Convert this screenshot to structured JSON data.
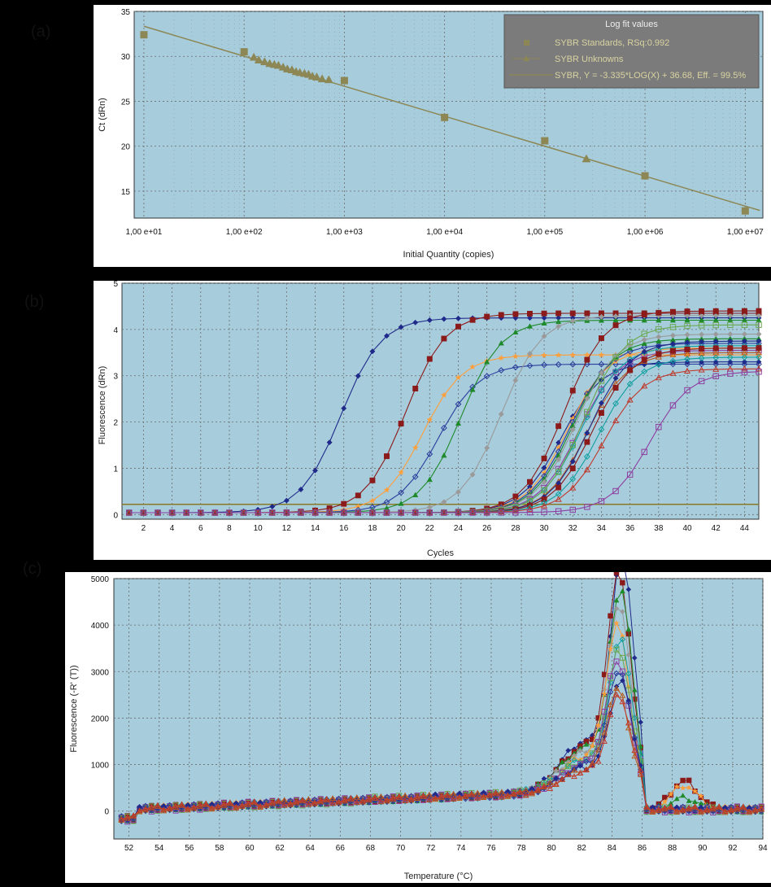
{
  "colors": {
    "plot_bg": "#A7CCDC",
    "grid": "#6b6b6b",
    "std": "#8C8754",
    "legend_bg": "#7b7b7b"
  },
  "panels": [
    {
      "label": "(a)"
    },
    {
      "label": "(b)"
    },
    {
      "label": "(c)"
    }
  ],
  "chart_data": [
    {
      "type": "scatter",
      "title": "",
      "xlabel": "Initial Quantity (copies)",
      "ylabel": "Ct (dRn)",
      "x_scale": "log",
      "xlim": [
        8,
        15000000
      ],
      "ylim": [
        12,
        35
      ],
      "x_ticks": [
        10,
        100,
        1000,
        10000,
        100000,
        1000000,
        10000000
      ],
      "x_tick_labels": [
        "1,00 e+01",
        "1,00 e+02",
        "1,00 e+03",
        "1,00 e+04",
        "1,00 e+05",
        "1,00 e+06",
        "1,00 e+07"
      ],
      "y_ticks": [
        15,
        20,
        25,
        30,
        35
      ],
      "grid": true,
      "legend": {
        "title": "Log fit values",
        "position": "top-right",
        "entries": [
          "SYBR Standards, RSq:0.992",
          "SYBR Unknowns",
          "SYBR, Y = -3.335*LOG(X) + 36.68, Eff. = 99.5%"
        ]
      },
      "fit": {
        "slope": -3.335,
        "intercept": 36.68,
        "x_range": [
          10,
          14000000
        ]
      },
      "series": [
        {
          "name": "SYBR Standards",
          "points": [
            [
              10,
              32.4
            ],
            [
              100,
              30.5
            ],
            [
              1000,
              27.3
            ],
            [
              10000,
              23.2
            ],
            [
              100000,
              20.6
            ],
            [
              1000000,
              16.7
            ],
            [
              10000000,
              12.8
            ]
          ]
        },
        {
          "name": "SYBR Unknowns",
          "points": [
            [
              125,
              29.9
            ],
            [
              140,
              29.6
            ],
            [
              160,
              29.4
            ],
            [
              180,
              29.2
            ],
            [
              200,
              29.1
            ],
            [
              220,
              29.0
            ],
            [
              245,
              28.8
            ],
            [
              270,
              28.6
            ],
            [
              300,
              28.5
            ],
            [
              330,
              28.3
            ],
            [
              360,
              28.2
            ],
            [
              400,
              28.1
            ],
            [
              440,
              28.0
            ],
            [
              480,
              27.8
            ],
            [
              530,
              27.7
            ],
            [
              600,
              27.5
            ],
            [
              700,
              27.4
            ],
            [
              260000,
              18.6
            ]
          ]
        }
      ]
    },
    {
      "type": "line",
      "title": "",
      "xlabel": "Cycles",
      "ylabel": "Fluorescence (dRn)",
      "xlim": [
        0.5,
        45
      ],
      "ylim": [
        -0.1,
        5
      ],
      "x_ticks": [
        2,
        4,
        6,
        8,
        10,
        12,
        14,
        16,
        18,
        20,
        22,
        24,
        26,
        28,
        30,
        32,
        34,
        36,
        38,
        40,
        42,
        44
      ],
      "y_ticks": [
        0,
        1,
        2,
        3,
        4,
        5
      ],
      "threshold": 0.22,
      "grid": true,
      "series": [
        {
          "color": "#1f2a8a",
          "marker": "diamond",
          "fill": true,
          "midpoint": 15.8,
          "plateau": 4.25
        },
        {
          "color": "#8b1a1a",
          "marker": "square",
          "fill": true,
          "midpoint": 20.3,
          "plateau": 4.35
        },
        {
          "color": "#ff9f3a",
          "marker": "star",
          "fill": true,
          "midpoint": 21.5,
          "plateau": 3.45
        },
        {
          "color": "#2a3d9c",
          "marker": "diamond",
          "fill": false,
          "midpoint": 22.6,
          "plateau": 3.25
        },
        {
          "color": "#1e8a2a",
          "marker": "triangle",
          "fill": true,
          "midpoint": 24.2,
          "plateau": 4.2
        },
        {
          "color": "#9a9a9a",
          "marker": "diamond",
          "fill": true,
          "midpoint": 27.0,
          "plateau": 4.3
        },
        {
          "color": "#1f2a8a",
          "marker": "diamond",
          "fill": true,
          "midpoint": 31.2,
          "plateau": 3.3
        },
        {
          "color": "#8b1a1a",
          "marker": "square",
          "fill": true,
          "midpoint": 31.4,
          "plateau": 4.4
        },
        {
          "color": "#ff9f3a",
          "marker": "star",
          "fill": true,
          "midpoint": 31.6,
          "plateau": 3.6
        },
        {
          "color": "#2a3d9c",
          "marker": "diamond",
          "fill": false,
          "midpoint": 31.8,
          "plateau": 3.7
        },
        {
          "color": "#1e8a2a",
          "marker": "triangle",
          "fill": true,
          "midpoint": 32.0,
          "plateau": 3.8
        },
        {
          "color": "#9a9a9a",
          "marker": "diamond",
          "fill": true,
          "midpoint": 32.2,
          "plateau": 3.9
        },
        {
          "color": "#8e3fa0",
          "marker": "square",
          "fill": false,
          "midpoint": 32.4,
          "plateau": 3.55
        },
        {
          "color": "#11a0a0",
          "marker": "diamond",
          "fill": false,
          "midpoint": 32.6,
          "plateau": 3.65
        },
        {
          "color": "#6aa84f",
          "marker": "square",
          "fill": false,
          "midpoint": 32.8,
          "plateau": 4.1
        },
        {
          "color": "#b85a20",
          "marker": "triangle",
          "fill": false,
          "midpoint": 33.0,
          "plateau": 3.5
        },
        {
          "color": "#1f2a8a",
          "marker": "diamond",
          "fill": true,
          "midpoint": 33.2,
          "plateau": 3.75
        },
        {
          "color": "#8b1a1a",
          "marker": "square",
          "fill": true,
          "midpoint": 33.4,
          "plateau": 3.6
        },
        {
          "color": "#11a0a0",
          "marker": "diamond",
          "fill": false,
          "midpoint": 33.8,
          "plateau": 3.4
        },
        {
          "color": "#c0392b",
          "marker": "triangle",
          "fill": false,
          "midpoint": 34.2,
          "plateau": 3.15
        },
        {
          "color": "#8e3fa0",
          "marker": "square",
          "fill": false,
          "midpoint": 37.4,
          "plateau": 3.1
        }
      ]
    },
    {
      "type": "line",
      "title": "",
      "xlabel": "Temperature (°C)",
      "ylabel": "Fluorescence (-R' (T))",
      "xlim": [
        51,
        94
      ],
      "ylim": [
        -600,
        5000
      ],
      "x_ticks": [
        52,
        54,
        56,
        58,
        60,
        62,
        64,
        66,
        68,
        70,
        72,
        74,
        76,
        78,
        80,
        82,
        84,
        86,
        88,
        90,
        92,
        94
      ],
      "y_ticks": [
        0,
        1000,
        2000,
        3000,
        4000,
        5000
      ],
      "grid": true,
      "series": [
        {
          "color": "#1f2a8a",
          "marker": "diamond",
          "fill": true,
          "peak": 4750,
          "peak_x": 84.7,
          "bump": 0
        },
        {
          "color": "#8b1a1a",
          "marker": "square",
          "fill": true,
          "peak": 4350,
          "peak_x": 84.5,
          "bump": 600
        },
        {
          "color": "#1e8a2a",
          "marker": "triangle",
          "fill": true,
          "peak": 4050,
          "peak_x": 84.6,
          "bump": 250
        },
        {
          "color": "#9a9a9a",
          "marker": "diamond",
          "fill": true,
          "peak": 3700,
          "peak_x": 84.5,
          "bump": 0
        },
        {
          "color": "#ff9f3a",
          "marker": "star",
          "fill": true,
          "peak": 3300,
          "peak_x": 84.4,
          "bump": 500
        },
        {
          "color": "#11a0a0",
          "marker": "diamond",
          "fill": false,
          "peak": 3000,
          "peak_x": 84.6,
          "bump": 0
        },
        {
          "color": "#6aa84f",
          "marker": "square",
          "fill": false,
          "peak": 2800,
          "peak_x": 84.5,
          "bump": 0
        },
        {
          "color": "#8e3fa0",
          "marker": "square",
          "fill": false,
          "peak": 2600,
          "peak_x": 84.4,
          "bump": 0
        },
        {
          "color": "#2a3d9c",
          "marker": "diamond",
          "fill": false,
          "peak": 2400,
          "peak_x": 84.5,
          "bump": 0
        },
        {
          "color": "#1f2a8a",
          "marker": "diamond",
          "fill": true,
          "peak": 2200,
          "peak_x": 84.6,
          "bump": 0
        },
        {
          "color": "#b85a20",
          "marker": "triangle",
          "fill": false,
          "peak": 2000,
          "peak_x": 84.4,
          "bump": 0
        },
        {
          "color": "#c0392b",
          "marker": "triangle",
          "fill": false,
          "peak": 1900,
          "peak_x": 84.5,
          "bump": 0
        }
      ]
    }
  ]
}
